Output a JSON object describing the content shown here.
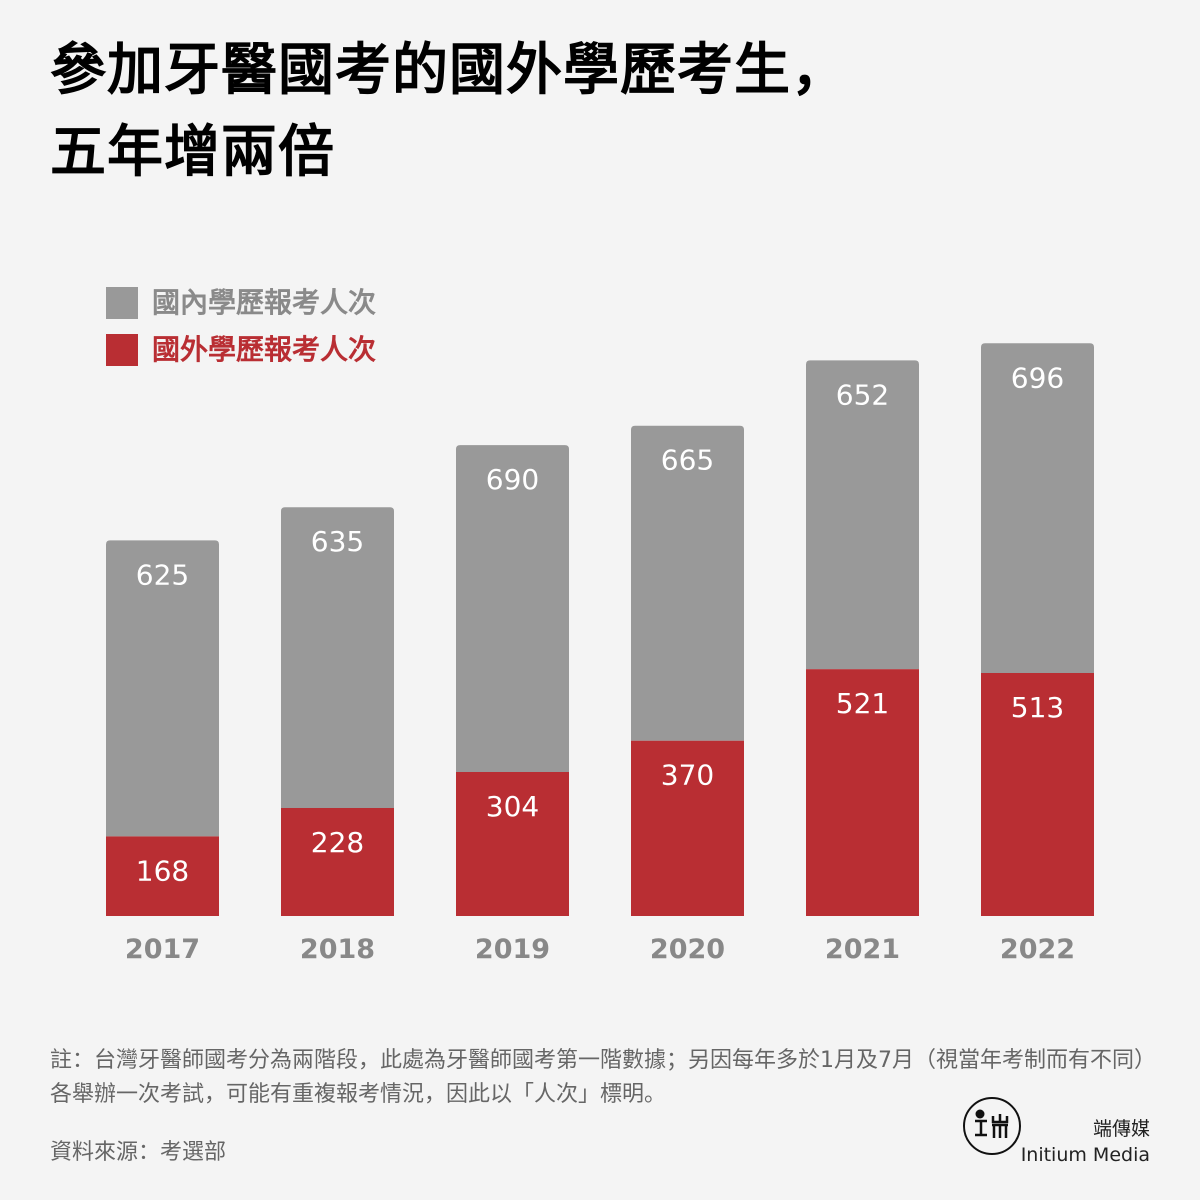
{
  "title": {
    "line1": "參加牙醫國考的國外學歷考生，",
    "line2": "五年增兩倍"
  },
  "legend": {
    "domestic": {
      "label": "國內學歷報考人次",
      "color": "#999999"
    },
    "foreign": {
      "label": "國外學歷報考人次",
      "color": "#b92e33"
    }
  },
  "chart_data": {
    "type": "bar",
    "stacked": true,
    "categories": [
      "2017",
      "2018",
      "2019",
      "2020",
      "2021",
      "2022"
    ],
    "series": [
      {
        "name": "國外學歷報考人次",
        "values": [
          168,
          228,
          304,
          370,
          521,
          513
        ],
        "color": "#b92e33"
      },
      {
        "name": "國內學歷報考人次",
        "values": [
          625,
          635,
          690,
          665,
          652,
          696
        ],
        "color": "#999999"
      }
    ],
    "data_labels": true,
    "grid": false,
    "legend_position": "top-left"
  },
  "note": "註：台灣牙醫師國考分為兩階段，此處為牙醫師國考第一階數據；另因每年多於1月及7月（視當年考制而有不同）各舉辦一次考試，可能有重複報考情況，因此以「人次」標明。",
  "source": "資料來源：考選部",
  "brand": {
    "zh": "端傳媒",
    "en": "Initium Media"
  }
}
